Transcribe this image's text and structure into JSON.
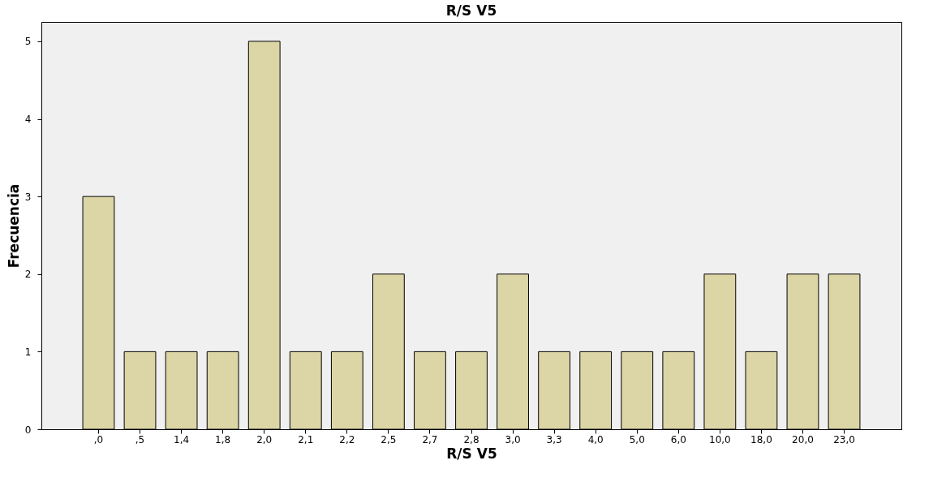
{
  "chart_data": {
    "type": "bar",
    "title": "R/S V5",
    "xlabel": "R/S V5",
    "ylabel": "Frecuencia",
    "categories": [
      ",0",
      ",5",
      "1,4",
      "1,8",
      "2,0",
      "2,1",
      "2,2",
      "2,5",
      "2,7",
      "2,8",
      "3,0",
      "3,3",
      "4,0",
      "5,0",
      "6,0",
      "10,0",
      "18,0",
      "20,0",
      "23,0"
    ],
    "values": [
      3,
      1,
      1,
      1,
      5,
      1,
      1,
      2,
      1,
      1,
      2,
      1,
      1,
      1,
      1,
      2,
      1,
      2,
      2
    ],
    "color": "#dcd5a5",
    "ylim": [
      0,
      5.25
    ],
    "yticks": [
      0,
      1,
      2,
      3,
      4,
      5
    ],
    "grid": false
  }
}
